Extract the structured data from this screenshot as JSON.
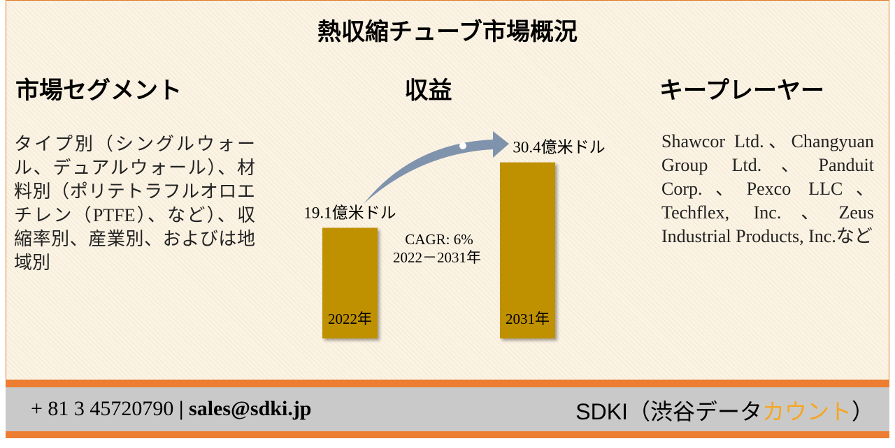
{
  "title": "熱収縮チューブ市場概況",
  "segments": {
    "heading": "市場セグメント",
    "text": "タイプ別（シングルウォール、デュアルウォール）、材料別（ポリテトラフルオロエチレン（PTFE）、など）、収縮率別、産業別、およびは地域別"
  },
  "revenue": {
    "heading": "収益",
    "categories": [
      "2022年",
      "2031年"
    ],
    "values": [
      19.1,
      30.4
    ],
    "value_labels": [
      "19.1億米ドル",
      "30.4億米ドル"
    ],
    "color": "#bf9000",
    "cagr": "CAGR: 6%",
    "period": "2022－2031年"
  },
  "players": {
    "heading": "キープレーヤー",
    "text": "Shawcor Ltd.、Changyuan Group Ltd.、Panduit Corp.、Pexco LLC、Techflex, Inc.、Zeus Industrial Products, Inc.など"
  },
  "footer": {
    "phone": "+ 81 3 45720790",
    "separator": "|",
    "email": "sales@sdki.jp",
    "company": "SDKI（渋谷データ",
    "company_highlight": "カウント",
    "company_end": "）"
  }
}
